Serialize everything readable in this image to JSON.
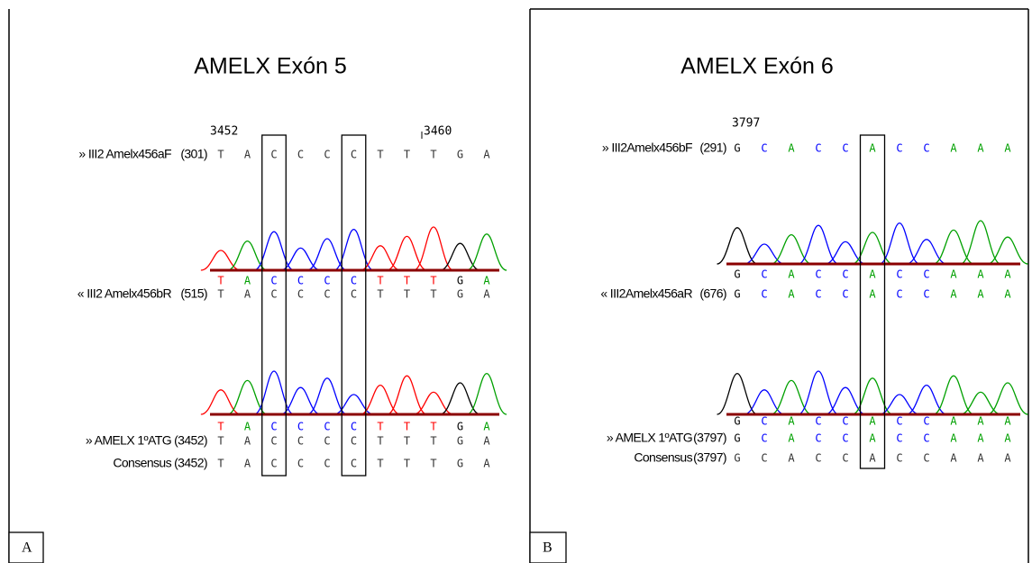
{
  "panels": [
    {
      "letter": "A",
      "title": "AMELX Exón 5",
      "positions": [
        "3452",
        "3460"
      ],
      "rows": [
        {
          "label": "» III2 Amelx456aF",
          "count": "(301)",
          "bases": [
            "T",
            "A",
            "C",
            "C",
            "C",
            "C",
            "T",
            "T",
            "T",
            "G",
            "A"
          ]
        },
        {
          "label": "« III2 Amelx456bR",
          "count": "(515)",
          "bases": [
            "T",
            "A",
            "C",
            "C",
            "C",
            "C",
            "T",
            "T",
            "T",
            "G",
            "A"
          ]
        },
        {
          "label": "» AMELX 1ºATG",
          "count": "(3452)",
          "bases": [
            "T",
            "A",
            "C",
            "C",
            "C",
            "C",
            "T",
            "T",
            "T",
            "G",
            "A"
          ]
        },
        {
          "label": "Consensus",
          "count": "(3452)",
          "bases": [
            "T",
            "A",
            "C",
            "C",
            "C",
            "C",
            "T",
            "T",
            "T",
            "G",
            "A"
          ]
        }
      ],
      "traces": [
        {
          "bases": [
            "T",
            "A",
            "C",
            "C",
            "C",
            "C",
            "T",
            "T",
            "T",
            "G",
            "A"
          ]
        },
        {
          "bases": [
            "T",
            "A",
            "C",
            "C",
            "C",
            "C",
            "T",
            "T",
            "T",
            "G",
            "A"
          ]
        }
      ]
    },
    {
      "letter": "B",
      "title": "AMELX Exón 6",
      "positions": [
        "3797"
      ],
      "rows": [
        {
          "label": "» III2Amelx456bF",
          "count": "(291)",
          "bases": [
            "G",
            "C",
            "A",
            "C",
            "C",
            "A",
            "C",
            "C",
            "A",
            "A",
            "A"
          ]
        },
        {
          "label": "« III2Amelx456aR",
          "count": "(676)",
          "bases": [
            "G",
            "C",
            "A",
            "C",
            "C",
            "A",
            "C",
            "C",
            "A",
            "A",
            "A"
          ]
        },
        {
          "label": "» AMELX 1ºATG",
          "count": "(3797)",
          "bases": [
            "G",
            "C",
            "A",
            "C",
            "C",
            "A",
            "C",
            "C",
            "A",
            "A",
            "A"
          ]
        },
        {
          "label": "Consensus",
          "count": "(3797)",
          "bases": [
            "G",
            "C",
            "A",
            "C",
            "C",
            "A",
            "C",
            "C",
            "A",
            "A",
            "A"
          ]
        }
      ],
      "traces": [
        {
          "bases": [
            "G",
            "C",
            "A",
            "C",
            "C",
            "A",
            "C",
            "C",
            "A",
            "A",
            "A"
          ]
        },
        {
          "bases": [
            "G",
            "C",
            "A",
            "C",
            "C",
            "A",
            "C",
            "C",
            "A",
            "A",
            "A"
          ]
        }
      ]
    }
  ]
}
